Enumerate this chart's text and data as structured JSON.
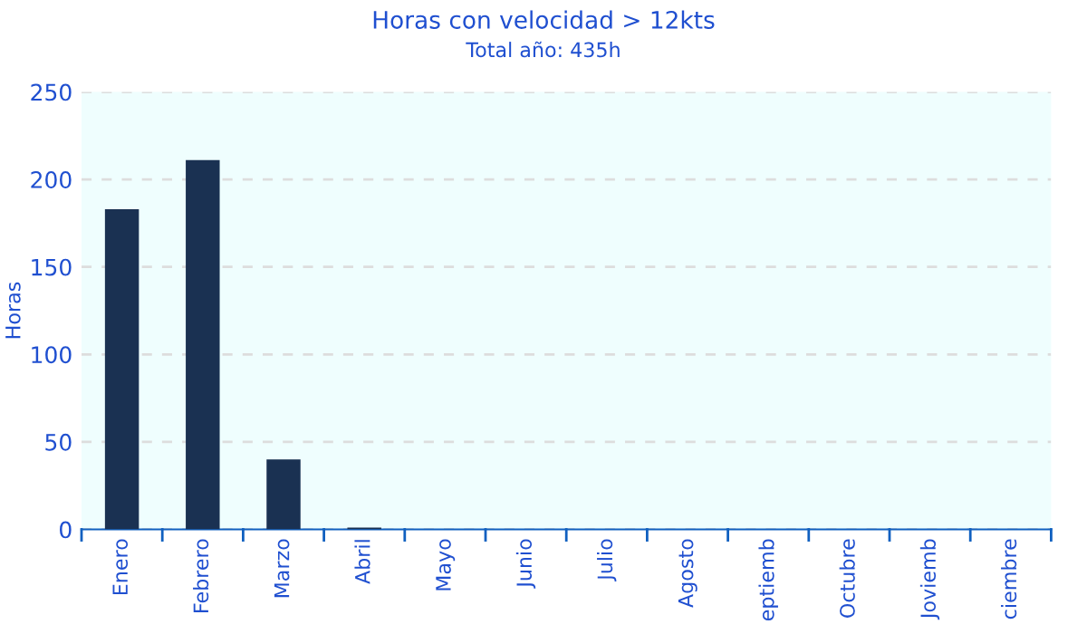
{
  "chart_data": {
    "type": "bar",
    "title": "Horas con velocidad > 12kts",
    "subtitle": "Total año: 435h",
    "ylabel": "Horas",
    "categories": [
      "Enero",
      "Febrero",
      "Marzo",
      "Abril",
      "Mayo",
      "Junio",
      "Julio",
      "Agosto",
      "eptiemb",
      "Octubre",
      "Joviemb",
      "ciembre"
    ],
    "values": [
      183,
      211,
      40,
      1,
      0,
      0,
      0,
      0,
      0,
      0,
      0,
      0
    ],
    "color": "#1a3152",
    "ylim": [
      0,
      250
    ],
    "yticks": [
      0,
      50,
      100,
      150,
      200,
      250
    ],
    "grid": "y",
    "legend": false
  }
}
